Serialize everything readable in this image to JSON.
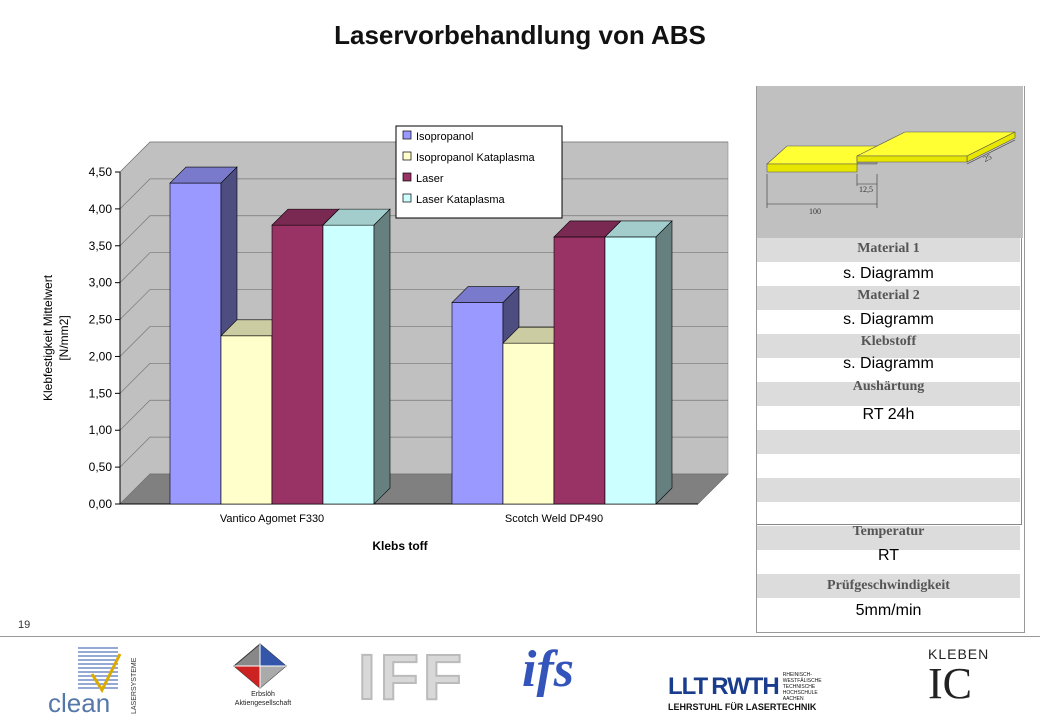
{
  "page": {
    "title": "Laservorbehandlung von ABS",
    "page_number": "19"
  },
  "chart_data": {
    "type": "bar",
    "categories": [
      "Vantico Agomet F330",
      "Scotch Weld DP490"
    ],
    "series": [
      {
        "name": "Isopropanol",
        "values": [
          4.35,
          2.73
        ],
        "color": "#9999ff"
      },
      {
        "name": "Isopropanol Kataplasma",
        "values": [
          2.28,
          2.18
        ],
        "color": "#ffffcc"
      },
      {
        "name": "Laser",
        "values": [
          3.78,
          3.62
        ],
        "color": "#993366"
      },
      {
        "name": "Laser Kataplasma",
        "values": [
          3.78,
          3.62
        ],
        "color": "#ccffff"
      }
    ],
    "xlabel": "Klebs toff",
    "ylabel_line1": "Klebfestigkeit Mittelwert",
    "ylabel_line2": "[N/mm2]",
    "ylim": [
      0,
      4.5
    ],
    "yticks": [
      "0,00",
      "0,50",
      "1,00",
      "1,50",
      "2,00",
      "2,50",
      "3,00",
      "3,50",
      "4,00",
      "4,50"
    ],
    "grid": true,
    "legend_position": "top-right"
  },
  "specimen": {
    "dim_100": "100",
    "dim_12_5": "12,5",
    "dim_25": "25"
  },
  "info_panel": [
    {
      "label": "Material 1",
      "value": "s. Diagramm"
    },
    {
      "label": "Material 2",
      "value": "s. Diagramm"
    },
    {
      "label": "Klebstoff",
      "value": "s. Diagramm"
    },
    {
      "label": "Aushärtung",
      "value": "RT 24h"
    },
    {
      "label": "Temperatur",
      "value": "RT"
    },
    {
      "label": "Prüfgeschwindigkeit",
      "value": "5mm/min"
    }
  ],
  "logos": {
    "clean": "clean",
    "lasersysteme": "LASERSYSTEME",
    "erbsloh_line1": "Erbslöh",
    "erbsloh_line2": "Aktiengesellschaft",
    "iff": "IFF",
    "ifs": "ifs",
    "llt": "LLT",
    "rwth": "RWTH",
    "rwth_small": "RHEINISCH- WESTFÄLISCHE TECHNISCHE HOCHSCHULE AACHEN",
    "llt_sub": "LEHRSTUHL FÜR LASERTECHNIK",
    "kleben": "KLEBEN",
    "ic": "IC"
  }
}
